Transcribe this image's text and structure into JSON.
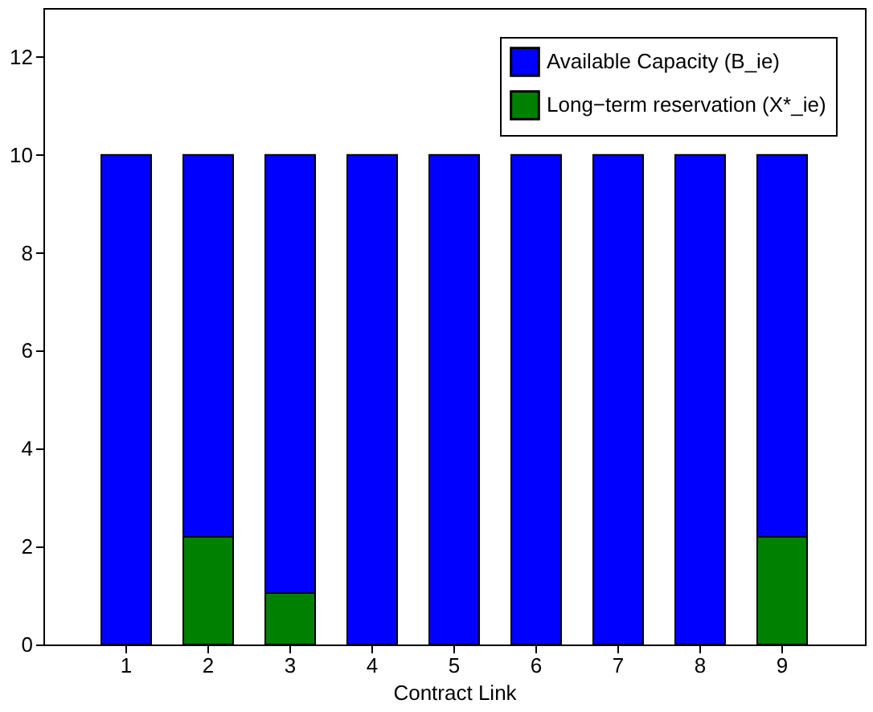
{
  "chart_data": {
    "type": "bar",
    "xlabel": "Contract Link",
    "categories": [
      "1",
      "2",
      "3",
      "4",
      "5",
      "6",
      "7",
      "8",
      "9"
    ],
    "stacked": true,
    "series": [
      {
        "name": "Long−term reservation (X*_ie)",
        "color": "#008000",
        "values": [
          null,
          2.2,
          1.05,
          null,
          null,
          null,
          null,
          null,
          2.2
        ]
      },
      {
        "name": "Available Capacity (B_ie)",
        "color": "#0000ff",
        "values": [
          10,
          7.8,
          8.95,
          10,
          10,
          10,
          10,
          10,
          7.8
        ]
      }
    ],
    "ylim": [
      0,
      13
    ],
    "yticks": [
      0,
      2,
      4,
      6,
      8,
      10,
      12
    ],
    "grid": false,
    "legend": "top right"
  }
}
